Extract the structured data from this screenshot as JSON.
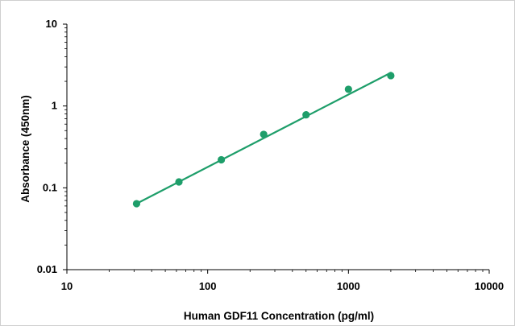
{
  "chart_data": {
    "type": "scatter",
    "title": "",
    "xlabel": "Human GDF11 Concentration (pg/ml)",
    "ylabel": "Absorbance (450nm)",
    "x_scale": "log",
    "y_scale": "log",
    "xlim": [
      10,
      10000
    ],
    "ylim": [
      0.01,
      10
    ],
    "x_tick_labels": [
      "10",
      "100",
      "1000",
      "10000"
    ],
    "y_tick_labels": [
      "10",
      "1",
      "0.1",
      "0.01"
    ],
    "grid": false,
    "legend": "none",
    "series": [
      {
        "x": [
          31.25,
          62.5,
          125,
          250,
          500,
          1000,
          2000
        ],
        "y": [
          0.064,
          0.118,
          0.22,
          0.45,
          0.78,
          1.6,
          2.35
        ]
      }
    ],
    "fit_line": {
      "x": [
        31.25,
        2000
      ],
      "y": [
        0.064,
        2.55
      ]
    },
    "colors": {
      "series": "#1e9e6a",
      "axis": "#000000",
      "frame": "#cfcfcf"
    }
  }
}
